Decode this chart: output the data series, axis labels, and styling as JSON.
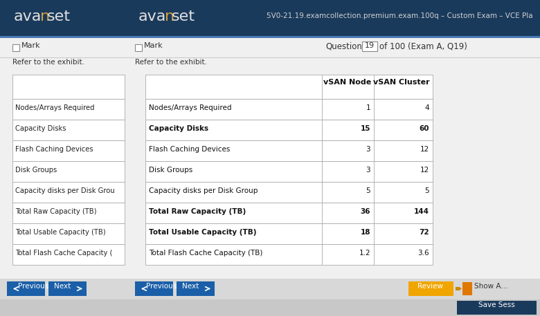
{
  "header_bg": "#1a3a5c",
  "header_text_color": "#ffffff",
  "avanset_text": "avanset",
  "header_subtitle": "5V0-21.19.examcollection.premium.exam.100q – Custom Exam – VCE Pla",
  "mark_text": "Mark",
  "question_text": "Question",
  "question_number": "19",
  "question_of": "of 100 (Exam A, Q19)",
  "refer_text": "Refer to the exhibit.",
  "panel_bg": "#f0f0f0",
  "panel_bg2": "#ffffff",
  "separator_color": "#cccccc",
  "table_header_row": [
    "",
    "vSAN Node",
    "vSAN Cluster"
  ],
  "table_rows": [
    [
      "Nodes/Arrays Required",
      "1",
      "4"
    ],
    [
      "Capacity Disks",
      "15",
      "60"
    ],
    [
      "Flash Caching Devices",
      "3",
      "12"
    ],
    [
      "Disk Groups",
      "3",
      "12"
    ],
    [
      "Capacity disks per Disk Group",
      "5",
      "5"
    ],
    [
      "Total Raw Capacity (TB)",
      "36",
      "144"
    ],
    [
      "Total Usable Capacity (TB)",
      "18",
      "72"
    ],
    [
      "Total Flash Cache Capacity (TB)",
      "1.2",
      "3.6"
    ]
  ],
  "bold_rows": [
    1,
    5,
    6
  ],
  "left_table_rows": [
    "Nodes/Arrays Required",
    "Capacity Disks",
    "Flash Caching Devices",
    "Disk Groups",
    "Capacity disks per Disk Grou",
    "Total Raw Capacity (TB)",
    "Total Usable Capacity (TB)",
    "Total Flash Cache Capacity ("
  ],
  "nav_bg": "#1a5fa8",
  "nav_text_color": "#ffffff",
  "review_bg": "#f0a500",
  "savesess_bg": "#1a3a5c",
  "bottom_bar_bg": "#d0d0d0",
  "fig_bg": "#c8c8c8"
}
